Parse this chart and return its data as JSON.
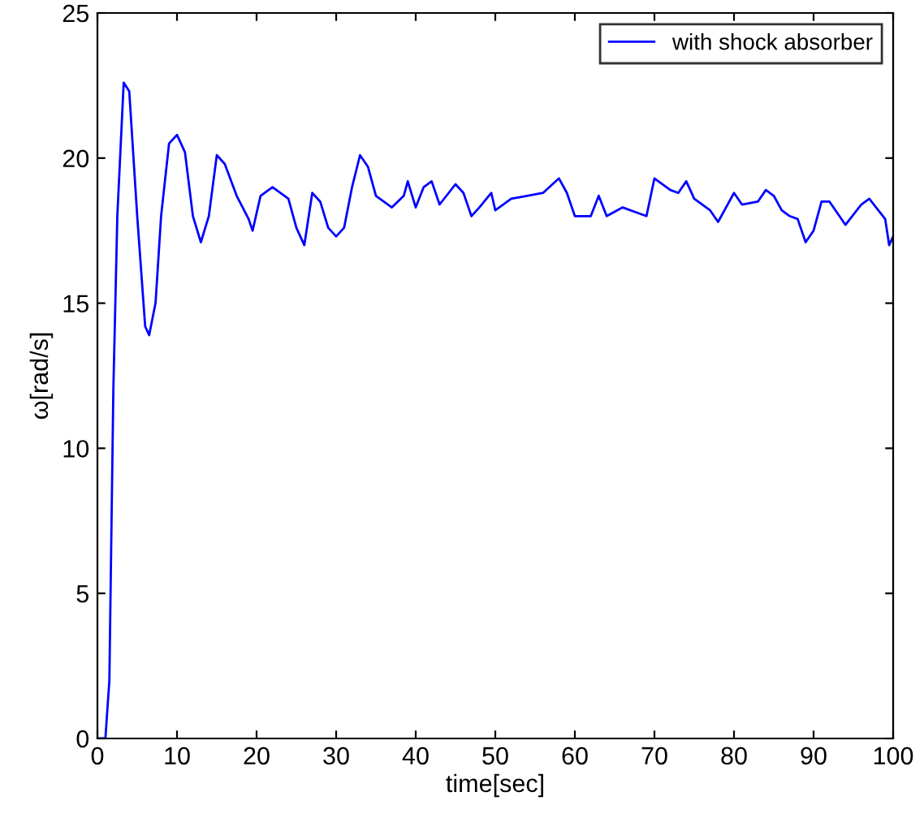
{
  "chart_data": {
    "type": "line",
    "xlabel": "time[sec]",
    "ylabel": "ω[rad/s]",
    "xlim": [
      0,
      100
    ],
    "ylim": [
      0,
      25
    ],
    "xticks": [
      0,
      10,
      20,
      30,
      40,
      50,
      60,
      70,
      80,
      90,
      100
    ],
    "yticks": [
      0,
      5,
      10,
      15,
      20,
      25
    ],
    "grid": false,
    "legend": "top right",
    "line_style": "solid",
    "series": [
      {
        "name": "with shock absorber",
        "color": "#0000ff",
        "x": [
          0,
          1,
          1.5,
          2,
          2.5,
          3.3,
          4,
          5,
          6,
          6.5,
          7.3,
          8,
          9,
          10,
          11,
          12,
          13,
          14,
          15,
          16,
          17.5,
          19,
          19.5,
          20.5,
          22,
          24,
          25,
          26,
          27,
          28,
          29,
          30,
          31,
          32,
          33,
          34,
          35,
          37,
          38.5,
          39,
          40,
          41,
          42,
          43,
          45,
          46,
          47,
          48,
          49.5,
          50,
          52,
          54,
          56,
          58,
          59,
          60,
          62,
          63,
          64,
          66,
          68,
          69,
          70,
          72,
          73,
          74,
          75,
          77,
          78,
          80,
          81,
          83,
          84,
          85,
          86,
          87,
          88,
          89,
          90,
          91,
          92,
          94,
          96,
          97,
          99,
          99.5,
          100
        ],
        "values": [
          0,
          0,
          2,
          12,
          18,
          22.6,
          22.3,
          18,
          14.2,
          13.9,
          15,
          18,
          20.5,
          20.8,
          20.2,
          18,
          17.1,
          18,
          20.1,
          19.8,
          18.7,
          17.9,
          17.5,
          18.7,
          19,
          18.6,
          17.6,
          17,
          18.8,
          18.5,
          17.6,
          17.3,
          17.6,
          19,
          20.1,
          19.7,
          18.7,
          18.3,
          18.7,
          19.2,
          18.3,
          19,
          19.2,
          18.4,
          19.1,
          18.8,
          18,
          18.3,
          18.8,
          18.2,
          18.6,
          18.7,
          18.8,
          19.3,
          18.8,
          18,
          18,
          18.7,
          18,
          18.3,
          18.1,
          18,
          19.3,
          18.9,
          18.8,
          19.2,
          18.6,
          18.2,
          17.8,
          18.8,
          18.4,
          18.5,
          18.9,
          18.7,
          18.2,
          18,
          17.9,
          17.1,
          17.5,
          18.5,
          18.5,
          17.7,
          18.4,
          18.6,
          17.9,
          17,
          17.3
        ]
      }
    ]
  }
}
